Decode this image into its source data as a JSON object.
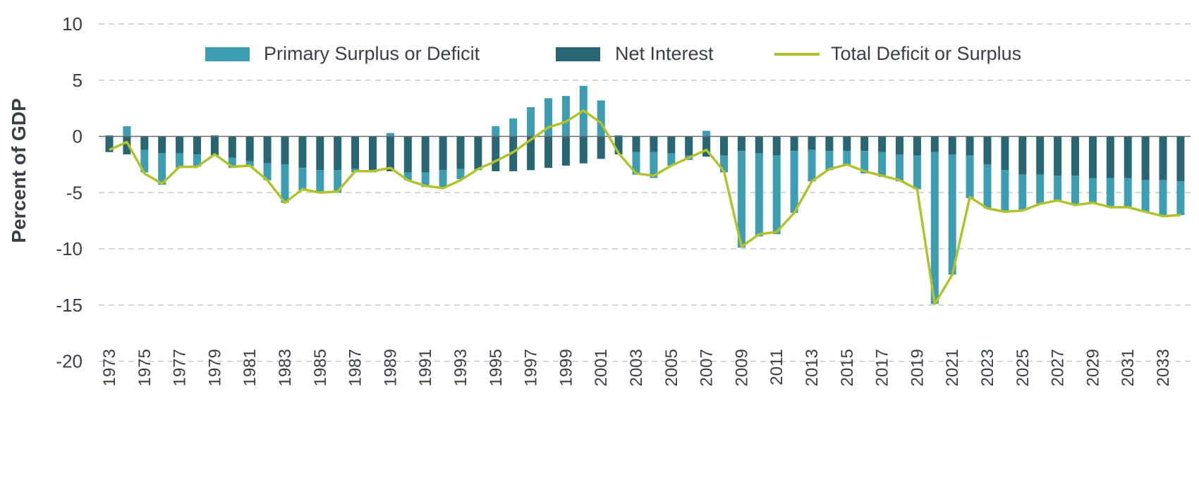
{
  "chart_data": {
    "type": "bar",
    "stacked": true,
    "title": "",
    "xlabel": "",
    "ylabel": "Percent of GDP",
    "ylim": [
      -20,
      10
    ],
    "yticks": [
      10,
      5,
      0,
      -5,
      -10,
      -15,
      -20
    ],
    "grid": true,
    "legend_position": "top",
    "colors": {
      "primary": "#3d9db3",
      "interest": "#276672",
      "total": "#b2c22a",
      "grid": "#c9c9c9",
      "zero": "#6b6b6b"
    },
    "legend": [
      {
        "key": "primary",
        "label": "Primary Surplus or Deficit"
      },
      {
        "key": "interest",
        "label": "Net Interest"
      },
      {
        "key": "total",
        "label": "Total Deficit or Surplus"
      }
    ],
    "x": [
      1973,
      1974,
      1975,
      1976,
      1977,
      1978,
      1979,
      1980,
      1981,
      1982,
      1983,
      1984,
      1985,
      1986,
      1987,
      1988,
      1989,
      1990,
      1991,
      1992,
      1993,
      1994,
      1995,
      1996,
      1997,
      1998,
      1999,
      2000,
      2001,
      2002,
      2003,
      2004,
      2005,
      2006,
      2007,
      2008,
      2009,
      2010,
      2011,
      2012,
      2013,
      2014,
      2015,
      2016,
      2017,
      2018,
      2019,
      2020,
      2021,
      2022,
      2023,
      2024,
      2025,
      2026,
      2027,
      2028,
      2029,
      2030,
      2031,
      2032,
      2033,
      2034
    ],
    "x_tick_labels": [
      "1973",
      "1975",
      "1977",
      "1979",
      "1981",
      "1983",
      "1985",
      "1987",
      "1989",
      "1991",
      "1993",
      "1995",
      "1997",
      "1999",
      "2001",
      "2003",
      "2005",
      "2007",
      "2009",
      "2011",
      "2013",
      "2015",
      "2017",
      "2019",
      "2021",
      "2023",
      "2025",
      "2027",
      "2029",
      "2031",
      "2033"
    ],
    "series": [
      {
        "name": "Primary Surplus or Deficit",
        "type": "bar",
        "values": [
          0.1,
          0.9,
          -2.0,
          -2.8,
          -1.3,
          -1.1,
          0.1,
          -0.9,
          -0.5,
          -1.5,
          -3.4,
          -2.0,
          -2.0,
          -2.0,
          -0.3,
          -0.2,
          0.3,
          -0.7,
          -1.3,
          -1.5,
          -0.9,
          -0.1,
          0.9,
          1.6,
          2.6,
          3.4,
          3.6,
          4.5,
          3.2,
          0.1,
          -2.0,
          -2.3,
          -1.1,
          -0.4,
          0.5,
          -1.5,
          -8.6,
          -7.4,
          -7.0,
          -5.5,
          -2.8,
          -1.7,
          -1.3,
          -2.0,
          -2.2,
          -2.4,
          -3.0,
          -13.5,
          -10.7,
          -3.8,
          -3.9,
          -3.7,
          -3.2,
          -2.6,
          -2.2,
          -2.6,
          -2.2,
          -2.6,
          -2.6,
          -2.8,
          -3.2,
          -3.0
        ]
      },
      {
        "name": "Net Interest",
        "type": "bar",
        "values": [
          -1.4,
          -1.6,
          -1.2,
          -1.5,
          -1.5,
          -1.6,
          -1.7,
          -1.9,
          -2.2,
          -2.4,
          -2.5,
          -2.8,
          -3.0,
          -3.0,
          -2.9,
          -3.0,
          -3.1,
          -3.2,
          -3.2,
          -3.0,
          -2.9,
          -2.9,
          -3.1,
          -3.1,
          -3.0,
          -2.8,
          -2.6,
          -2.4,
          -2.0,
          -1.6,
          -1.4,
          -1.4,
          -1.5,
          -1.7,
          -1.8,
          -1.7,
          -1.3,
          -1.5,
          -1.7,
          -1.3,
          -1.2,
          -1.3,
          -1.3,
          -1.3,
          -1.4,
          -1.6,
          -1.7,
          -1.4,
          -1.6,
          -1.7,
          -2.5,
          -3.0,
          -3.4,
          -3.4,
          -3.5,
          -3.5,
          -3.7,
          -3.7,
          -3.7,
          -3.9,
          -3.9,
          -4.0
        ]
      },
      {
        "name": "Total Deficit or Surplus",
        "type": "line",
        "values": [
          -1.2,
          -0.5,
          -3.3,
          -4.2,
          -2.7,
          -2.7,
          -1.6,
          -2.7,
          -2.6,
          -3.9,
          -5.9,
          -4.7,
          -5.0,
          -4.9,
          -3.1,
          -3.1,
          -2.8,
          -3.9,
          -4.4,
          -4.6,
          -3.9,
          -2.9,
          -2.2,
          -1.4,
          -0.3,
          0.8,
          1.3,
          2.3,
          1.2,
          -1.5,
          -3.3,
          -3.5,
          -2.6,
          -1.9,
          -1.2,
          -3.1,
          -9.8,
          -8.7,
          -8.5,
          -6.8,
          -4.0,
          -2.9,
          -2.5,
          -3.1,
          -3.5,
          -3.9,
          -4.7,
          -14.9,
          -12.3,
          -5.4,
          -6.4,
          -6.7,
          -6.6,
          -6.0,
          -5.7,
          -6.1,
          -5.9,
          -6.3,
          -6.3,
          -6.7,
          -7.1,
          -7.0
        ]
      }
    ]
  }
}
